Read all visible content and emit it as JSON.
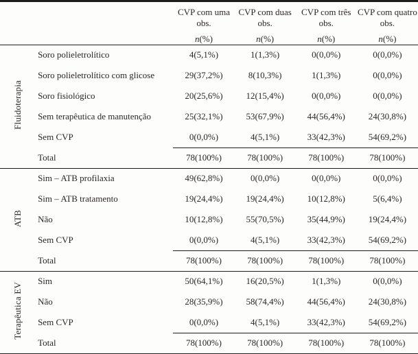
{
  "colors": {
    "rule": "#1d1d1d",
    "text": "#2b2728",
    "background": "#fdfdfc"
  },
  "table": {
    "subheader": {
      "italic": "n",
      "rest": "(%)"
    },
    "columns": [
      {
        "title": "CVP com uma obs."
      },
      {
        "title": "CVP com duas obs."
      },
      {
        "title": "CVP com três obs."
      },
      {
        "title": "CVP com quatro obs."
      }
    ],
    "sections": [
      {
        "group": "Fluidoterapia",
        "rows": [
          {
            "label": "Soro polieletrolítico",
            "values": [
              "4(5,1%)",
              "1(1,3%)",
              "0(0,0%)",
              "0(0,0%)"
            ]
          },
          {
            "label": "Soro polieletrolítico com glicose",
            "values": [
              "29(37,2%)",
              "8(10,3%)",
              "1(1,3%)",
              "0(0,0%)"
            ]
          },
          {
            "label": "Soro fisiológico",
            "values": [
              "20(25,6%)",
              "12(15,4%)",
              "0(0,0%)",
              "0(0,0%)"
            ]
          },
          {
            "label": "Sem terapêutica de manutenção",
            "values": [
              "25(32,1%)",
              "53(67,9%)",
              "44(56,4%)",
              "24(30,8%)"
            ]
          },
          {
            "label": "Sem CVP",
            "values": [
              "0(0,0%)",
              "4(5,1%)",
              "33(42,3%)",
              "54(69,2%)"
            ]
          },
          {
            "label": "Total",
            "values": [
              "78(100%)",
              "78(100%)",
              "78(100%)",
              "78(100%)"
            ]
          }
        ]
      },
      {
        "group": "ATB",
        "rows": [
          {
            "label": "Sim – ATB profilaxia",
            "values": [
              "49(62,8%)",
              "0(0,0%)",
              "0(0,0%)",
              "0(0,0%)"
            ]
          },
          {
            "label": "Sim –  ATB tratamento",
            "values": [
              "19(24,4%)",
              "19(24,4%)",
              "10(12,8%)",
              "5(6,4%)"
            ]
          },
          {
            "label": "Não",
            "values": [
              "10(12,8%)",
              "55(70,5%)",
              "35(44,9%)",
              "19(24,4%)"
            ]
          },
          {
            "label": "Sem CVP",
            "values": [
              "0(0,0%)",
              "4(5,1%)",
              "33(42,3%)",
              "54(69,2%)"
            ]
          },
          {
            "label": "Total",
            "values": [
              "78(100%)",
              "78(100%)",
              "78(100%)",
              "78(100%)"
            ]
          }
        ]
      },
      {
        "group": "Terapêutica EV",
        "rows": [
          {
            "label": "Sim",
            "values": [
              "50(64,1%)",
              "16(20,5%)",
              "1(1,3%)",
              "0(0,0%)"
            ]
          },
          {
            "label": "Não",
            "values": [
              "28(35,9%)",
              "58(74,4%)",
              "44(56,4%)",
              "24(30,8%)"
            ]
          },
          {
            "label": "Sem CVP",
            "values": [
              "0(0,0%)",
              "4(5,1%)",
              "33(42,3%)",
              "54(69,2%)"
            ]
          },
          {
            "label": "Total",
            "values": [
              "78(100%)",
              "78(100%)",
              "78(100%)",
              "78(100%)"
            ]
          }
        ]
      }
    ]
  }
}
